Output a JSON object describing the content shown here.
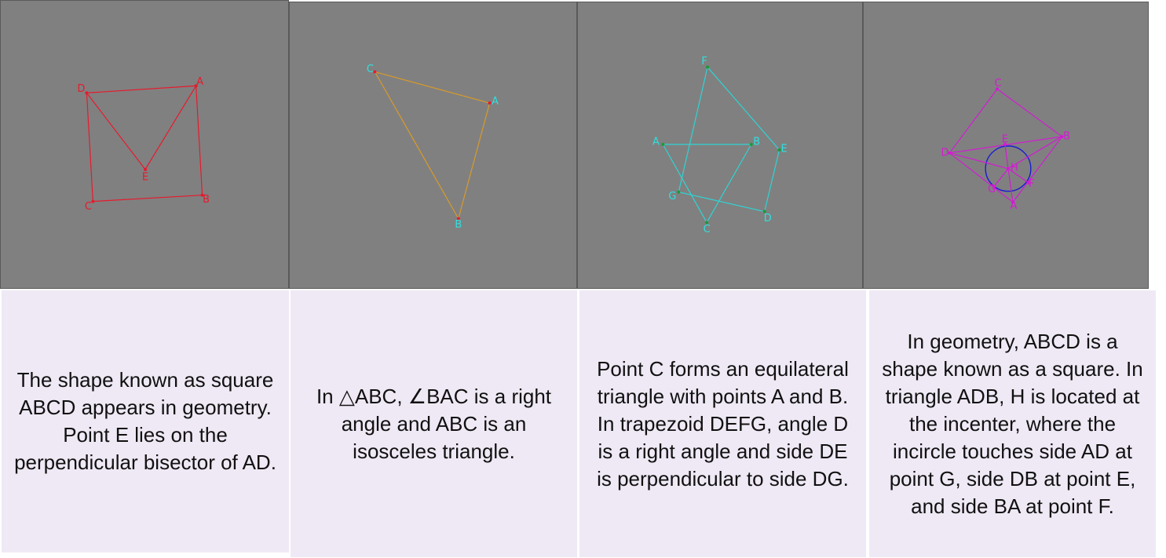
{
  "panels": [
    {
      "caption": "The shape known as square ABCD appears in geometry. Point E lies on the perpendicular bisector of AD.",
      "line_color": "#e8192c",
      "label_color": "#e8192c",
      "point_color": "#e8192c",
      "points": {
        "A": "A",
        "B": "B",
        "C": "C",
        "D": "D",
        "E": "E"
      },
      "segments": [
        "AB",
        "BC",
        "CD",
        "DA",
        "DE",
        "EA"
      ]
    },
    {
      "caption": "In △ABC, ∠BAC is a right angle and ABC is an isosceles triangle.",
      "line_color": "#d89a2a",
      "label_color": "#2fe0e0",
      "point_color": "#e8192c",
      "points": {
        "A": "A",
        "B": "B",
        "C": "C"
      },
      "segments": [
        "AB",
        "BC",
        "CA"
      ]
    },
    {
      "caption": "Point C forms an equilateral triangle with points A and B. In trapezoid DEFG, angle D is a right angle and side DE is perpendicular to side DG.",
      "line_color": "#2fd4d4",
      "label_color": "#2fe0e0",
      "point_color": "#1a9a3a",
      "points": {
        "A": "A",
        "B": "B",
        "C": "C",
        "D": "D",
        "E": "E",
        "F": "F",
        "G": "G"
      },
      "segments": [
        "AB",
        "BC",
        "CA",
        "DE",
        "EF",
        "FG",
        "GD"
      ]
    },
    {
      "caption": "In geometry, ABCD is a shape known as a square. In triangle ADB, H is located at the incenter, where the incircle touches side AD at point G, side DB at point E, and side BA at point F.",
      "line_color": "#d41ad4",
      "label_color": "#d41ad4",
      "point_color": "#d41ad4",
      "circle_color": "#1a1ad4",
      "points": {
        "A": "A",
        "B": "B",
        "C": "C",
        "D": "D",
        "E": "E",
        "F": "F",
        "G": "G",
        "H": "H"
      },
      "segments": [
        "CB",
        "BA",
        "AD",
        "DC",
        "DB",
        "HD",
        "HB",
        "HA",
        "HE",
        "HF",
        "HG"
      ]
    }
  ]
}
